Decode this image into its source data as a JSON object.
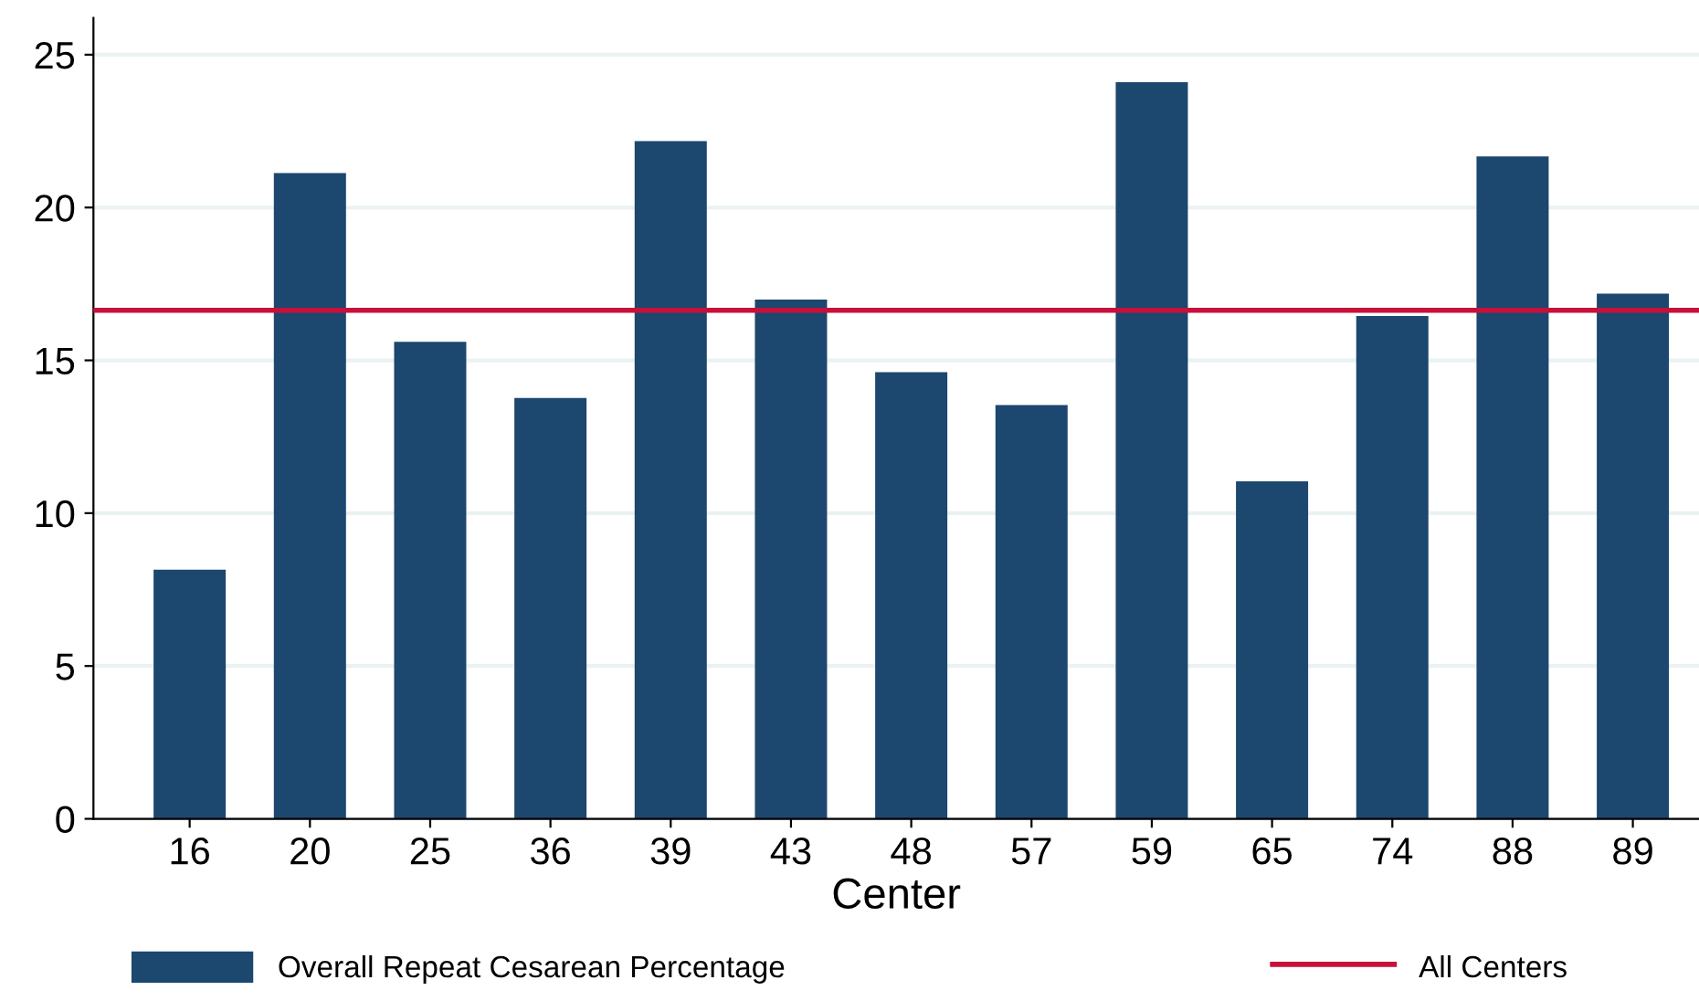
{
  "chart_data": {
    "type": "bar",
    "xlabel": "Center",
    "categories": [
      "16",
      "20",
      "25",
      "36",
      "39",
      "43",
      "48",
      "57",
      "59",
      "65",
      "74",
      "88",
      "89"
    ],
    "series": [
      {
        "name": "Overall Repeat Cesarean Percentage",
        "color": "#1c476f",
        "values": [
          8.15,
          21.13,
          15.61,
          13.77,
          22.17,
          16.99,
          14.61,
          13.54,
          24.1,
          11.04,
          16.45,
          21.67,
          17.18
        ]
      }
    ],
    "ref_lines": [
      {
        "axis": "y",
        "value": 16.64,
        "label": "All Centers",
        "color": "#c8103b",
        "line_style": "solid"
      }
    ],
    "ylim": [
      0,
      26.2
    ],
    "yticks": [
      0,
      5,
      10,
      15,
      20,
      25
    ],
    "grid": "y",
    "legend": "bottom"
  }
}
